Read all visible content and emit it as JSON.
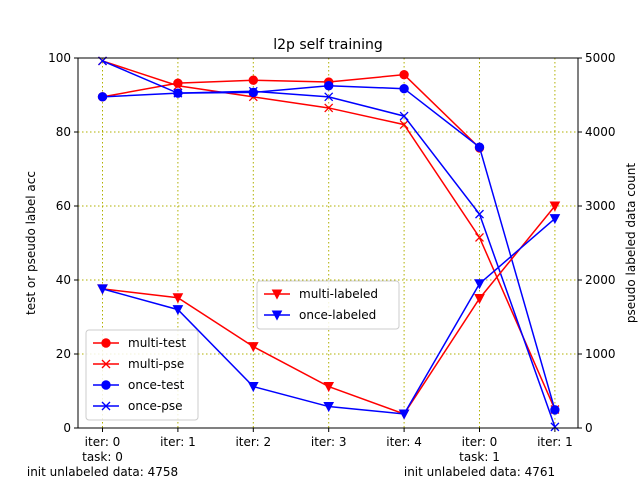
{
  "chart_data": {
    "type": "line",
    "title": "l2p self training",
    "ylabel": "test or pseudo label acc",
    "y2label": "pseudo labeled data count",
    "ylim": [
      0,
      100
    ],
    "y2lim": [
      0,
      5000
    ],
    "yticks": [
      0,
      20,
      40,
      60,
      80,
      100
    ],
    "y2ticks": [
      0,
      1000,
      2000,
      3000,
      4000,
      5000
    ],
    "grid": true,
    "x_tick_labels": [
      [
        "iter: 0",
        "task: 0",
        "init unlabeled data: 4758"
      ],
      [
        "iter: 1"
      ],
      [
        "iter: 2"
      ],
      [
        "iter: 3"
      ],
      [
        "iter: 4"
      ],
      [
        "iter: 0",
        "task: 1",
        "init unlabeled data: 4761"
      ],
      [
        "iter: 1"
      ]
    ],
    "colors": {
      "multi": "#ff0000",
      "once": "#0000ff",
      "grid": "#b0b000"
    },
    "series_left": [
      {
        "name": "multi-test",
        "color": "#ff0000",
        "marker": "circle",
        "values": [
          89.5,
          93.2,
          94.0,
          93.5,
          95.5,
          75.7,
          null
        ]
      },
      {
        "name": "multi-pse",
        "color": "#ff0000",
        "marker": "x",
        "values": [
          99.2,
          92.5,
          89.5,
          86.5,
          82.0,
          51.5,
          5.0
        ]
      },
      {
        "name": "once-test",
        "color": "#0000ff",
        "marker": "circle",
        "values": [
          89.5,
          90.5,
          90.7,
          92.5,
          91.7,
          75.9,
          4.9
        ]
      },
      {
        "name": "once-pse",
        "color": "#0000ff",
        "marker": "x",
        "values": [
          99.2,
          90.5,
          91.0,
          89.5,
          84.3,
          57.8,
          0.3
        ]
      }
    ],
    "series_right": [
      {
        "name": "multi-labeled",
        "color": "#ff0000",
        "marker": "triangle-down",
        "values": [
          1880,
          1760,
          1100,
          560,
          190,
          1750,
          3000
        ]
      },
      {
        "name": "once-labeled",
        "color": "#0000ff",
        "marker": "triangle-down",
        "values": [
          1880,
          1600,
          560,
          290,
          190,
          1950,
          2830
        ]
      }
    ],
    "legend_left_placement": "lower-left",
    "legend_right_placement": "center"
  }
}
